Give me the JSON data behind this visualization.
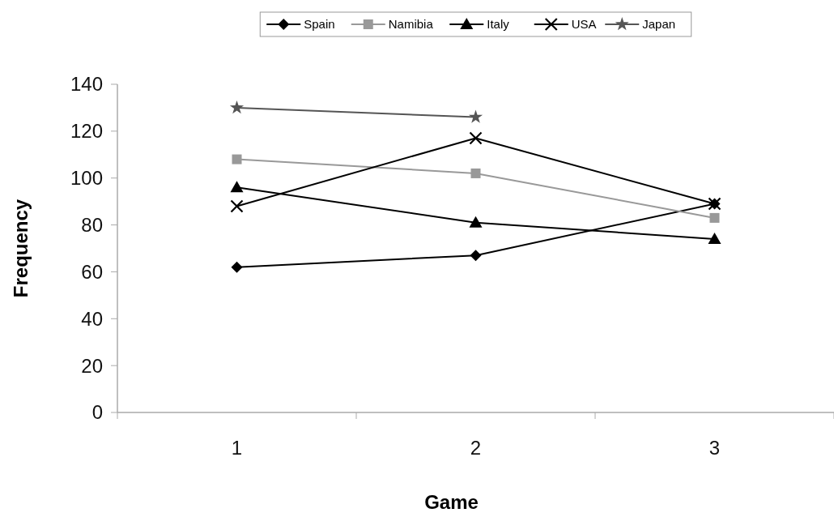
{
  "chart_data": {
    "type": "line",
    "xlabel": "Game",
    "ylabel": "Frequency",
    "categories": [
      "1",
      "2",
      "3"
    ],
    "series": [
      {
        "name": "Spain",
        "color": "#000000",
        "marker": "diamond",
        "values": [
          62,
          67,
          89
        ]
      },
      {
        "name": "Namibia",
        "color": "#999999",
        "marker": "square",
        "values": [
          108,
          102,
          83
        ]
      },
      {
        "name": "Italy",
        "color": "#000000",
        "marker": "triangle",
        "values": [
          96,
          81,
          74
        ]
      },
      {
        "name": "USA",
        "color": "#000000",
        "marker": "cross",
        "values": [
          88,
          117,
          89
        ]
      },
      {
        "name": "Japan",
        "color": "#555555",
        "marker": "star",
        "values": [
          130,
          126,
          null
        ]
      }
    ],
    "ylim": [
      0,
      140
    ],
    "yticks": [
      0,
      20,
      40,
      60,
      80,
      100,
      120,
      140
    ],
    "grid": false,
    "legend": "top"
  }
}
